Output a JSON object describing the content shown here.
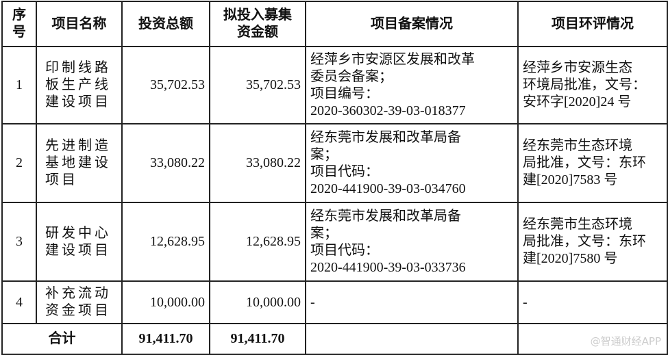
{
  "headers": [
    "序号",
    "项目名称",
    "投资总额",
    "拟投入募集资金额",
    "项目备案情况",
    "项目环评情况"
  ],
  "header_lines": {
    "seq": [
      "序",
      "号"
    ],
    "raise": [
      "拟投入募集",
      "资金额"
    ]
  },
  "rows": [
    {
      "seq": "1",
      "name": [
        "印制线路",
        "板生产线",
        "建设项目"
      ],
      "total": "35,702.53",
      "raise": "35,702.53",
      "filing": [
        "经萍乡市安源区发展和改革",
        "委员会备案；",
        "项目编号：",
        "2020-360302-39-03-018377"
      ],
      "eia": [
        "经萍乡市安源生态",
        "环境局批准，文号：",
        "安环字[2020]24 号"
      ]
    },
    {
      "seq": "2",
      "name": [
        "先进制造",
        "基地建设",
        "项目"
      ],
      "total": "33,080.22",
      "raise": "33,080.22",
      "filing": [
        "经东莞市发展和改革局备",
        "案；",
        "项目代码：",
        "2020-441900-39-03-034760"
      ],
      "eia": [
        "经东莞市生态环境",
        "局批准，文号：东环",
        "建[2020]7583 号"
      ]
    },
    {
      "seq": "3",
      "name": [
        "研发中心",
        "建设项目"
      ],
      "total": "12,628.95",
      "raise": "12,628.95",
      "filing": [
        "经东莞市发展和改革局备",
        "案；",
        "项目代码：",
        "2020-441900-39-03-033736"
      ],
      "eia": [
        "经东莞市生态环境",
        "局批准，文号：东环",
        "建[2020]7580 号"
      ]
    },
    {
      "seq": "4",
      "name": [
        "补充流动",
        "资金项目"
      ],
      "total": "10,000.00",
      "raise": "10,000.00",
      "filing": [
        "-"
      ],
      "eia": [
        "-"
      ]
    }
  ],
  "summary": {
    "label": "合计",
    "total": "91,411.70",
    "raise": "91,411.70"
  },
  "watermark": "@智通财经APP"
}
